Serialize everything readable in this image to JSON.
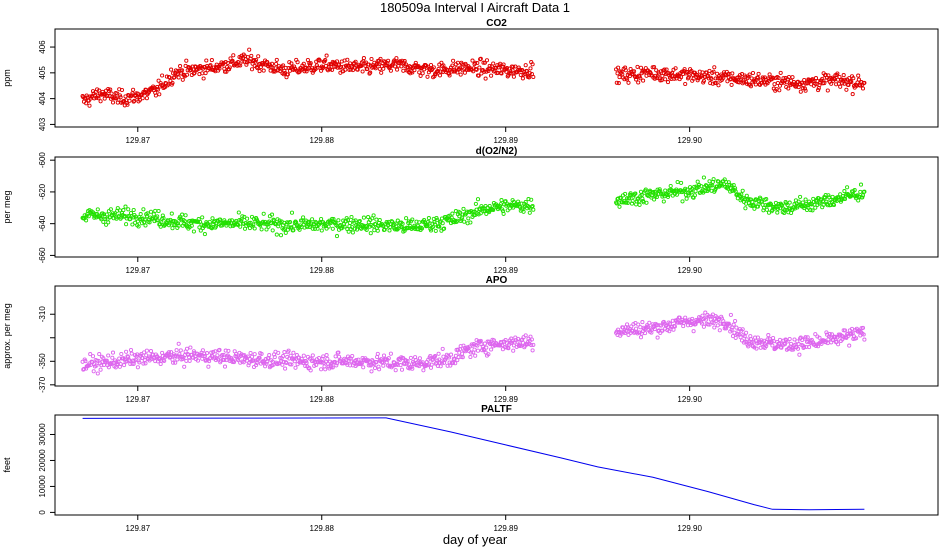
{
  "figure": {
    "title": "180509a   Interval I Aircraft Data 1",
    "xlabel": "day of year"
  },
  "chart_data": [
    {
      "type": "scatter",
      "title": "CO2",
      "ylabel": "ppm",
      "xlim": [
        129.8655,
        129.9135
      ],
      "ylim": [
        402.9,
        406.7
      ],
      "yticks": [
        403,
        404,
        405,
        406
      ],
      "xticks": [
        129.87,
        129.88,
        129.89,
        129.9
      ],
      "xtick_labels": [
        "129.87",
        "129.88",
        "129.89",
        "129.90"
      ],
      "color": "#e00000",
      "segments": [
        {
          "x": [
            129.867,
            129.868,
            129.869,
            129.87,
            129.871,
            129.872,
            129.874,
            129.876,
            129.878,
            129.88,
            129.882,
            129.884,
            129.886,
            129.888,
            129.89,
            129.8915
          ],
          "y": [
            403.9,
            404.2,
            404.0,
            404.1,
            404.3,
            405.0,
            405.2,
            405.5,
            405.1,
            405.3,
            405.2,
            405.3,
            405.1,
            405.2,
            405.1,
            405.1
          ]
        },
        {
          "x": [
            129.896,
            129.898,
            129.9,
            129.902,
            129.904,
            129.906,
            129.908,
            129.9095
          ],
          "y": [
            404.9,
            405.0,
            404.9,
            404.8,
            404.7,
            404.6,
            404.7,
            404.6
          ]
        }
      ]
    },
    {
      "type": "scatter",
      "title": "d(O2/N2)",
      "ylabel": "per meg",
      "xlim": [
        129.8655,
        129.9135
      ],
      "ylim": [
        -661,
        -598
      ],
      "yticks": [
        -660,
        -640,
        -620,
        -600
      ],
      "xticks": [
        129.87,
        129.88,
        129.89,
        129.9
      ],
      "xtick_labels": [
        "129.87",
        "129.88",
        "129.89",
        "129.90"
      ],
      "color": "#22e000",
      "segments": [
        {
          "x": [
            129.867,
            129.87,
            129.873,
            129.876,
            129.879,
            129.882,
            129.885,
            129.887,
            129.888,
            129.889,
            129.8915
          ],
          "y": [
            -635,
            -635,
            -640,
            -640,
            -641,
            -640,
            -642,
            -638,
            -634,
            -630,
            -628
          ]
        },
        {
          "x": [
            129.896,
            129.898,
            129.9,
            129.902,
            129.903,
            129.905,
            129.907,
            129.9095
          ],
          "y": [
            -625,
            -622,
            -619,
            -615,
            -625,
            -630,
            -627,
            -620
          ]
        }
      ]
    },
    {
      "type": "scatter",
      "title": "APO",
      "ylabel": "approx. per meg",
      "xlim": [
        129.8655,
        129.9135
      ],
      "ylim": [
        -371,
        -286
      ],
      "yticks": [
        -370,
        -350,
        -330,
        -310
      ],
      "ytick_labels": [
        "-370",
        "-350",
        "",
        "-310"
      ],
      "xticks": [
        129.87,
        129.88,
        129.89,
        129.9
      ],
      "xtick_labels": [
        "129.87",
        "129.88",
        "129.89",
        "129.90"
      ],
      "color": "#dd66ee",
      "segments": [
        {
          "x": [
            129.867,
            129.87,
            129.873,
            129.876,
            129.879,
            129.882,
            129.885,
            129.887,
            129.888,
            129.889,
            129.8915
          ],
          "y": [
            -353,
            -348,
            -345,
            -348,
            -350,
            -350,
            -352,
            -348,
            -340,
            -336,
            -333
          ]
        },
        {
          "x": [
            129.896,
            129.898,
            129.9,
            129.902,
            129.903,
            129.905,
            129.907,
            129.9095
          ],
          "y": [
            -324,
            -322,
            -316,
            -315,
            -331,
            -336,
            -334,
            -326
          ]
        }
      ]
    },
    {
      "type": "line",
      "title": "PALTF",
      "ylabel": "feet",
      "xlim": [
        129.8655,
        129.9135
      ],
      "ylim": [
        -1000,
        37500
      ],
      "yticks": [
        0,
        10000,
        20000,
        30000
      ],
      "xticks": [
        129.87,
        129.88,
        129.89,
        129.9
      ],
      "xtick_labels": [
        "129.87",
        "129.88",
        "129.89",
        "129.90"
      ],
      "color": "#0000ee",
      "x": [
        129.867,
        129.875,
        129.8835,
        129.887,
        129.89,
        129.893,
        129.895,
        129.898,
        129.901,
        129.9035,
        129.9045,
        129.9065,
        129.9095
      ],
      "y": [
        36200,
        36300,
        36400,
        31000,
        26000,
        21000,
        17500,
        13500,
        8000,
        3000,
        1200,
        1000,
        1200
      ]
    }
  ]
}
